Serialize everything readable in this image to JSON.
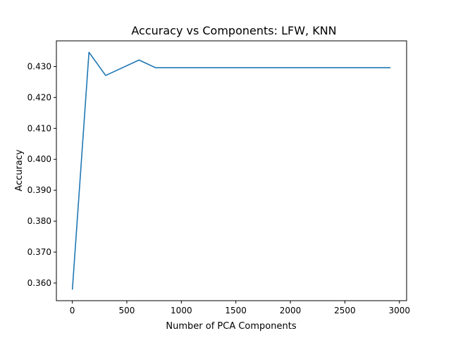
{
  "chart_data": {
    "type": "line",
    "title": "Accuracy vs Components: LFW, KNN",
    "xlabel": "Number of PCA Components",
    "ylabel": "Accuracy",
    "xlim": [
      -146,
      3066
    ],
    "ylim": [
      0.3543,
      0.4383
    ],
    "xticks": [
      0,
      500,
      1000,
      1500,
      2000,
      2500,
      3000
    ],
    "yticks": [
      0.36,
      0.37,
      0.38,
      0.39,
      0.4,
      0.41,
      0.42,
      0.43
    ],
    "ytick_labels": [
      "0.360",
      "0.370",
      "0.380",
      "0.390",
      "0.400",
      "0.410",
      "0.420",
      "0.430"
    ],
    "grid": false,
    "series": [
      {
        "color": "#1f77b4",
        "x": [
          1,
          153,
          306,
          612,
          765,
          918,
          1500,
          2000,
          2500,
          2914
        ],
        "y": [
          0.358,
          0.4346,
          0.4271,
          0.4321,
          0.4296,
          0.4296,
          0.4296,
          0.4296,
          0.4296,
          0.4296
        ]
      }
    ]
  }
}
